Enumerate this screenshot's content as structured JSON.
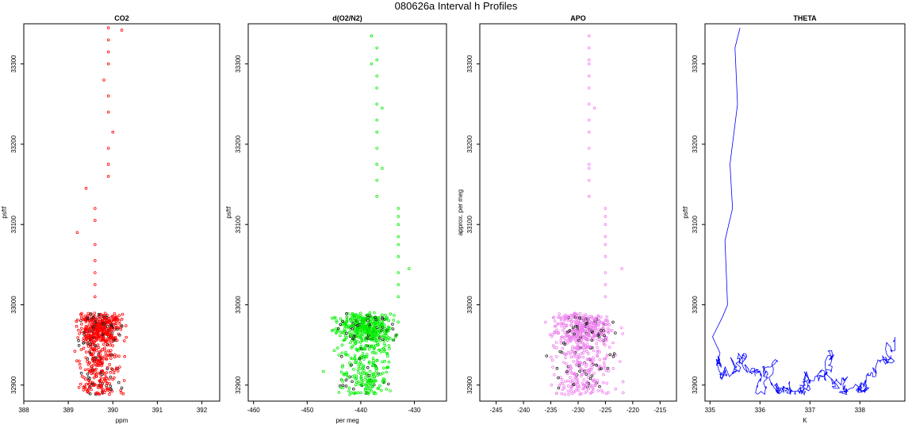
{
  "title": "080626a   Interval h Profiles",
  "chart_data": [
    {
      "type": "scatter",
      "title": "CO2",
      "xlabel": "ppm",
      "ylabel": "psftf",
      "color": "#ff0000",
      "xlim": [
        388,
        392.4
      ],
      "ylim": [
        32880,
        33350
      ],
      "xticks": [
        388,
        389,
        390,
        391,
        392
      ],
      "yticks": [
        32900,
        33000,
        33100,
        33200,
        33300
      ],
      "upper_points": [
        [
          389.9,
          33345
        ],
        [
          390.2,
          33342
        ],
        [
          389.9,
          33330
        ],
        [
          389.9,
          33315
        ],
        [
          389.9,
          33300
        ],
        [
          389.8,
          33280
        ],
        [
          389.9,
          33260
        ],
        [
          389.9,
          33240
        ],
        [
          390.0,
          33215
        ],
        [
          389.9,
          33195
        ],
        [
          389.9,
          33175
        ],
        [
          389.9,
          33160
        ],
        [
          389.4,
          33145
        ],
        [
          389.6,
          33120
        ],
        [
          389.6,
          33105
        ],
        [
          389.2,
          33090
        ],
        [
          389.6,
          33075
        ],
        [
          389.6,
          33055
        ],
        [
          389.6,
          33040
        ],
        [
          389.6,
          33025
        ],
        [
          389.6,
          33010
        ]
      ],
      "cluster": {
        "x_center": 389.7,
        "x_spread": 0.45,
        "y_min": 32888,
        "y_max": 32990,
        "count": 650
      }
    },
    {
      "type": "scatter",
      "title": "d(O2/N2)",
      "xlabel": "per meg",
      "ylabel": "psftf",
      "color": "#00ee00",
      "xlim": [
        -461,
        -424
      ],
      "ylim": [
        32880,
        33350
      ],
      "xticks": [
        -460,
        -450,
        -440,
        -430
      ],
      "yticks": [
        32900,
        33000,
        33100,
        33200,
        33300
      ],
      "upper_points": [
        [
          -438,
          33335
        ],
        [
          -437,
          33320
        ],
        [
          -437,
          33305
        ],
        [
          -438,
          33300
        ],
        [
          -437,
          33285
        ],
        [
          -437,
          33270
        ],
        [
          -437,
          33250
        ],
        [
          -436,
          33245
        ],
        [
          -437,
          33230
        ],
        [
          -437,
          33215
        ],
        [
          -437,
          33195
        ],
        [
          -437,
          33175
        ],
        [
          -436,
          33170
        ],
        [
          -437,
          33155
        ],
        [
          -437,
          33135
        ],
        [
          -433,
          33120
        ],
        [
          -433,
          33110
        ],
        [
          -433,
          33100
        ],
        [
          -433,
          33085
        ],
        [
          -433,
          33075
        ],
        [
          -433,
          33060
        ],
        [
          -431,
          33045
        ],
        [
          -433,
          33040
        ],
        [
          -433,
          33025
        ],
        [
          -433,
          33010
        ]
      ],
      "cluster": {
        "x_center": -439,
        "x_spread": 5,
        "y_min": 32888,
        "y_max": 32990,
        "count": 650
      }
    },
    {
      "type": "scatter",
      "title": "APO",
      "xlabel": "",
      "ylabel": "approx. per meg",
      "color": "#ee82ee",
      "xlim": [
        -248,
        -212
      ],
      "ylim": [
        32880,
        33350
      ],
      "xticks": [
        -245,
        -240,
        -235,
        -230,
        -225,
        -220,
        -215
      ],
      "yticks": [
        32900,
        33000,
        33100,
        33200,
        33300
      ],
      "upper_points": [
        [
          -228,
          33335
        ],
        [
          -228,
          33320
        ],
        [
          -228,
          33305
        ],
        [
          -228,
          33300
        ],
        [
          -228,
          33285
        ],
        [
          -228,
          33270
        ],
        [
          -228,
          33250
        ],
        [
          -227,
          33245
        ],
        [
          -228,
          33230
        ],
        [
          -228,
          33215
        ],
        [
          -228,
          33195
        ],
        [
          -228,
          33175
        ],
        [
          -228,
          33170
        ],
        [
          -228,
          33155
        ],
        [
          -228,
          33135
        ],
        [
          -225,
          33120
        ],
        [
          -225,
          33110
        ],
        [
          -225,
          33100
        ],
        [
          -225,
          33085
        ],
        [
          -225,
          33075
        ],
        [
          -225,
          33060
        ],
        [
          -222,
          33045
        ],
        [
          -225,
          33040
        ],
        [
          -225,
          33025
        ],
        [
          -225,
          33010
        ]
      ],
      "cluster": {
        "x_center": -229,
        "x_spread": 5,
        "y_min": 32888,
        "y_max": 32990,
        "count": 650
      }
    },
    {
      "type": "line",
      "title": "THETA",
      "xlabel": "K",
      "ylabel": "psftf",
      "color": "#0000ff",
      "xlim": [
        334.9,
        338.9
      ],
      "ylim": [
        32880,
        33350
      ],
      "xticks": [
        335,
        336,
        337,
        338
      ],
      "yticks": [
        32900,
        33000,
        33100,
        33200,
        33300
      ],
      "upper_path": [
        [
          335.6,
          33345
        ],
        [
          335.5,
          33320
        ],
        [
          335.55,
          33250
        ],
        [
          335.4,
          33175
        ],
        [
          335.45,
          33120
        ],
        [
          335.3,
          33080
        ],
        [
          335.35,
          33000
        ],
        [
          335.25,
          32985
        ],
        [
          335.05,
          32960
        ],
        [
          335.2,
          32940
        ],
        [
          335.15,
          32925
        ]
      ],
      "cluster": {
        "x_min": 335.1,
        "x_max": 338.7,
        "y_min": 32888,
        "y_max": 32990,
        "count": 480
      }
    }
  ]
}
